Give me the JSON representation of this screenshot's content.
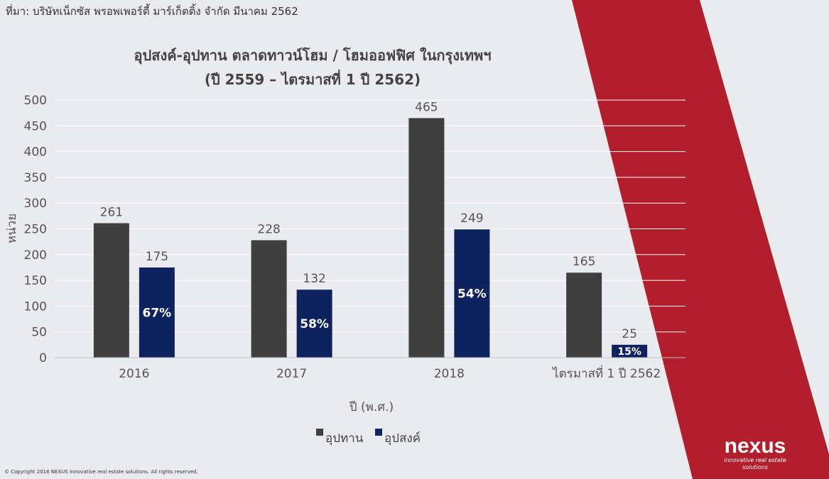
{
  "source": "ที่มา: บริษัทเน็กซัส พรอพเพอร์ตี้ มาร์เก็ตติ้ง จำกัด มีนาคม 2562",
  "footer": {
    "copyright": "© Copyright 2018 NEXUS Innovative real estate solutions. All rights reserved.",
    "logo_name": "nexus",
    "logo_tagline": "innovative real estate solutions"
  },
  "colors": {
    "background": "#e9ebee",
    "accent_band": "#b31e2d",
    "supply": "#3f3f3f",
    "demand": "#0f2260"
  },
  "chart_data": {
    "type": "bar",
    "title": "อุปสงค์-อุปทาน ตลาดทาวน์โฮม / โฮมออฟฟิศ ในกรุงเทพฯ",
    "subtitle": "(ปี 2559 – ไตรมาสที่ 1 ปี 2562)",
    "xlabel": "ปี (พ.ศ.)",
    "ylabel": "หน่วย",
    "categories": [
      "2016",
      "2017",
      "2018",
      "ไตรมาสที่ 1 ปี 2562"
    ],
    "ylim": [
      0,
      500
    ],
    "yticks": [
      0,
      50,
      100,
      150,
      200,
      250,
      300,
      350,
      400,
      450,
      500
    ],
    "grid": true,
    "legend_position": "bottom-center",
    "series": [
      {
        "name": "อุปทาน",
        "values": [
          261,
          228,
          465,
          165
        ]
      },
      {
        "name": "อุปสงค์",
        "values": [
          175,
          132,
          249,
          25
        ],
        "percent_labels": [
          "67%",
          "58%",
          "54%",
          "15%"
        ]
      }
    ]
  }
}
